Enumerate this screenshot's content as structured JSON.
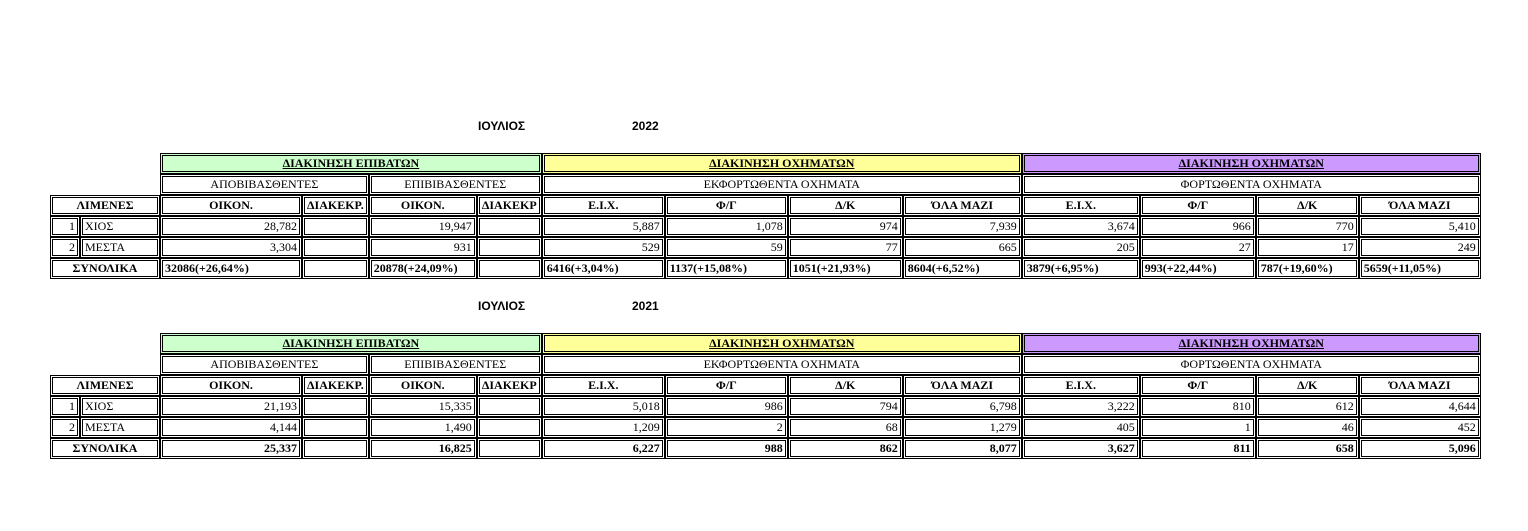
{
  "sections": [
    {
      "month": "ΙΟΥΛΙΟΣ",
      "year": "2022",
      "group_headers": [
        "ΔΙΑΚΙΝΗΣΗ ΕΠΙΒΑΤΩΝ",
        "ΔΙΑΚΙΝΗΣΗ ΟΧΗΜΑΤΩΝ",
        "ΔΙΑΚΙΝΗΣΗ ΟΧΗΜΑΤΩΝ"
      ],
      "sub_headers": [
        "ΑΠΟΒΙΒΑΣΘΕΝΤΕΣ",
        "ΕΠΙΒΙΒΑΣΘΕΝΤΕΣ",
        "ΕΚΦΟΡΤΩΘΕΝΤΑ ΟΧΗΜΑΤΑ",
        "ΦΟΡΤΩΘΕΝΤΑ ΟΧΗΜΑΤΑ"
      ],
      "columns": [
        "ΛΙΜΕΝΕΣ",
        "ΟΙΚΟΝ.",
        "ΔΙΑΚΕΚΡ.",
        "ΟΙΚΟΝ.",
        "ΔΙΑΚΕΚΡ",
        "Ε.Ι.Χ.",
        "Φ/Γ",
        "Δ/Κ",
        "ΌΛΑ ΜΑΖΙ",
        "Ε.Ι.Χ.",
        "Φ/Γ",
        "Δ/Κ",
        "ΌΛΑ ΜΑΖΙ"
      ],
      "rows": [
        {
          "idx": "1",
          "port": "ΧΙΟΣ",
          "values": [
            "28,782",
            "",
            "19,947",
            "",
            "5,887",
            "1,078",
            "974",
            "7,939",
            "3,674",
            "966",
            "770",
            "5,410"
          ]
        },
        {
          "idx": "2",
          "port": "ΜΕΣΤΑ",
          "values": [
            "3,304",
            "",
            "931",
            "",
            "529",
            "59",
            "77",
            "665",
            "205",
            "27",
            "17",
            "249"
          ]
        }
      ],
      "total": {
        "label": "ΣΥΝΟΛΙΚΑ",
        "values": [
          "32086(+26,64%)",
          "",
          "20878(+24,09%)",
          "",
          "6416(+3,04%)",
          "1137(+15,08%)",
          "1051(+21,93%)",
          "8604(+6,52%)",
          "3879(+6,95%)",
          "993(+22,44%)",
          "787(+19,60%)",
          "5659(+11,05%)"
        ]
      }
    },
    {
      "month": "ΙΟΥΛΙΟΣ",
      "year": "2021",
      "group_headers": [
        "ΔΙΑΚΙΝΗΣΗ ΕΠΙΒΑΤΩΝ",
        "ΔΙΑΚΙΝΗΣΗ ΟΧΗΜΑΤΩΝ",
        "ΔΙΑΚΙΝΗΣΗ ΟΧΗΜΑΤΩΝ"
      ],
      "sub_headers": [
        "ΑΠΟΒΙΒΑΣΘΕΝΤΕΣ",
        "ΕΠΙΒΙΒΑΣΘΕΝΤΕΣ",
        "ΕΚΦΟΡΤΩΘΕΝΤΑ ΟΧΗΜΑΤΑ",
        "ΦΟΡΤΩΘΕΝΤΑ ΟΧΗΜΑΤΑ"
      ],
      "columns": [
        "ΛΙΜΕΝΕΣ",
        "ΟΙΚΟΝ.",
        "ΔΙΑΚΕΚΡ.",
        "ΟΙΚΟΝ.",
        "ΔΙΑΚΕΚΡ",
        "Ε.Ι.Χ.",
        "Φ/Γ",
        "Δ/Κ",
        "ΌΛΑ ΜΑΖΙ",
        "Ε.Ι.Χ.",
        "Φ/Γ",
        "Δ/Κ",
        "ΌΛΑ ΜΑΖΙ"
      ],
      "rows": [
        {
          "idx": "1",
          "port": "ΧΙΟΣ",
          "values": [
            "21,193",
            "",
            "15,335",
            "",
            "5,018",
            "986",
            "794",
            "6,798",
            "3,222",
            "810",
            "612",
            "4,644"
          ]
        },
        {
          "idx": "2",
          "port": "ΜΕΣΤΑ",
          "values": [
            "4,144",
            "",
            "1,490",
            "",
            "1,209",
            "2",
            "68",
            "1,279",
            "405",
            "1",
            "46",
            "452"
          ]
        }
      ],
      "total": {
        "label": "ΣΥΝΟΛΙΚΑ",
        "values": [
          "25,337",
          "",
          "16,825",
          "",
          "6,227",
          "988",
          "862",
          "8,077",
          "3,627",
          "811",
          "658",
          "5,096"
        ]
      }
    }
  ],
  "colors": {
    "passengers_header": "#ccffcc",
    "unloaded_header": "#ffff99",
    "loaded_header": "#cc99ff"
  }
}
